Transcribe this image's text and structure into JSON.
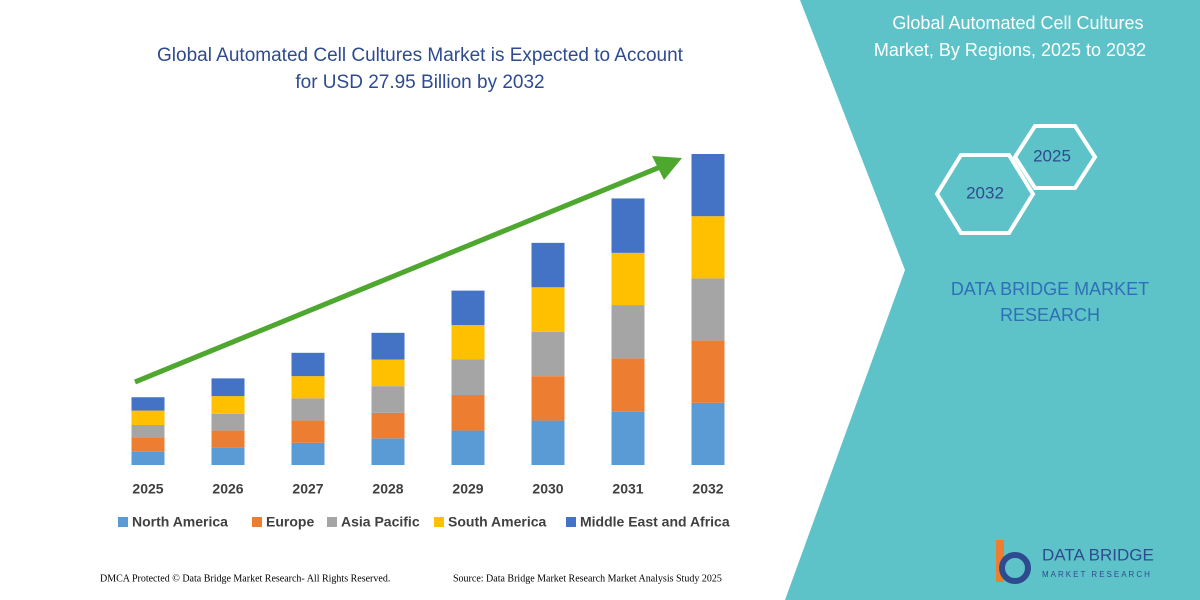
{
  "chart_data": {
    "type": "stacked-bar",
    "title": [
      "Global Automated Cell Cultures Market is Expected to Account",
      "for USD 27.95 Billion by 2032"
    ],
    "categories": [
      "2025",
      "2026",
      "2027",
      "2028",
      "2029",
      "2030",
      "2031",
      "2032"
    ],
    "series": [
      {
        "name": "North America",
        "color": "#5b9bd5",
        "values": [
          1.2,
          1.6,
          2.0,
          2.4,
          3.1,
          4.0,
          4.8,
          5.6
        ]
      },
      {
        "name": "Europe",
        "color": "#ed7d31",
        "values": [
          1.3,
          1.5,
          2.0,
          2.3,
          3.2,
          4.0,
          4.8,
          5.6
        ]
      },
      {
        "name": "Asia Pacific",
        "color": "#a5a5a5",
        "values": [
          1.1,
          1.5,
          2.0,
          2.4,
          3.2,
          4.0,
          4.8,
          5.6
        ]
      },
      {
        "name": "South America",
        "color": "#ffc000",
        "values": [
          1.3,
          1.6,
          2.0,
          2.4,
          3.1,
          4.0,
          4.7,
          5.6
        ]
      },
      {
        "name": "Middle East and Africa",
        "color": "#4472c4",
        "values": [
          1.2,
          1.6,
          2.1,
          2.4,
          3.1,
          4.0,
          4.9,
          5.6
        ]
      }
    ],
    "ylim": [
      0,
      28
    ]
  },
  "panel": {
    "title": [
      "Global Automated Cell Cultures",
      "Market, By Regions, 2025 to 2032"
    ],
    "hex_start": "2025",
    "hex_end": "2032",
    "brand": [
      "DATA BRIDGE MARKET",
      "RESEARCH"
    ],
    "logo": [
      "DATA BRIDGE",
      "MARKET RESEARCH"
    ]
  },
  "footer": {
    "left": "DMCA Protected © Data Bridge Market Research-  All Rights Reserved.",
    "right": "Source: Data Bridge Market Research  Market Analysis Study 2025"
  }
}
